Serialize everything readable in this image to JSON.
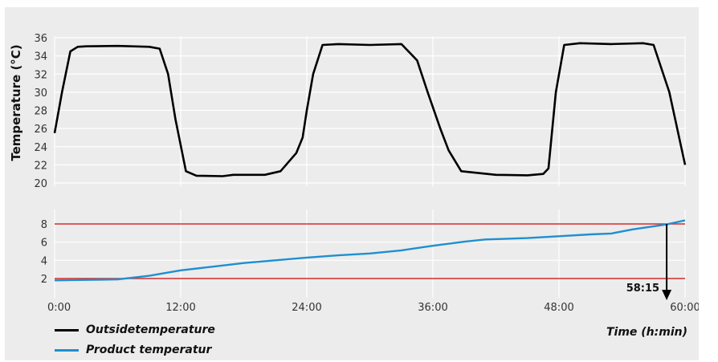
{
  "chart_data": [
    {
      "type": "line",
      "ylabel": "Temperature (°C)",
      "ylim": [
        19,
        36.5
      ],
      "yticks": [
        20,
        22,
        24,
        26,
        28,
        30,
        32,
        34,
        36
      ],
      "grid": true,
      "series": [
        {
          "name": "Outsidetemperature",
          "color": "#000000",
          "x": [
            0,
            0.7,
            1.5,
            2.2,
            3,
            6,
            9,
            10,
            10.8,
            11.5,
            12.5,
            13.5,
            16,
            17,
            20,
            21.5,
            23,
            23.6,
            24,
            24.6,
            25.5,
            27,
            30,
            33,
            34.5,
            35.5,
            36.7,
            37.5,
            38.7,
            42,
            45,
            46.5,
            47,
            47.7,
            48.5,
            50,
            53,
            56,
            57,
            58.5,
            60
          ],
          "y": [
            25.5,
            30,
            34.5,
            35,
            35.05,
            35.1,
            35,
            34.8,
            32,
            27,
            21.3,
            20.8,
            20.75,
            20.9,
            20.9,
            21.3,
            23.3,
            25,
            28,
            32,
            35.2,
            35.3,
            35.2,
            35.3,
            33.5,
            30,
            26,
            23.6,
            21.3,
            20.9,
            20.85,
            21,
            21.6,
            30,
            35.2,
            35.4,
            35.3,
            35.4,
            35.2,
            30,
            22
          ]
        }
      ]
    },
    {
      "type": "line",
      "xlabel": "Time (h:min)",
      "ylim": [
        0,
        9.4
      ],
      "yticks": [
        2,
        4,
        6,
        8
      ],
      "x_ticks": [
        "0:00",
        "12:00",
        "24:00",
        "36:00",
        "48:00",
        "60:00"
      ],
      "xlim": [
        0,
        60
      ],
      "grid": true,
      "reference_lines": [
        {
          "y": 2,
          "color": "#d62a2a"
        },
        {
          "y": 8,
          "color": "#d62a2a"
        }
      ],
      "series": [
        {
          "name": "Product temperatur",
          "color": "#1f8fd0",
          "x": [
            0,
            3,
            6,
            9,
            12,
            15,
            18,
            21,
            24,
            27,
            30,
            33,
            36,
            39,
            41,
            45,
            48,
            51,
            53,
            55,
            58.25,
            60
          ],
          "y": [
            1.8,
            1.85,
            1.9,
            2.3,
            2.9,
            3.3,
            3.7,
            4.0,
            4.3,
            4.55,
            4.75,
            5.1,
            5.6,
            6.05,
            6.3,
            6.45,
            6.65,
            6.85,
            6.95,
            7.4,
            7.95,
            8.4
          ]
        }
      ],
      "annotation": {
        "label": "58:15",
        "x": 58.25,
        "y": 8
      }
    }
  ]
}
